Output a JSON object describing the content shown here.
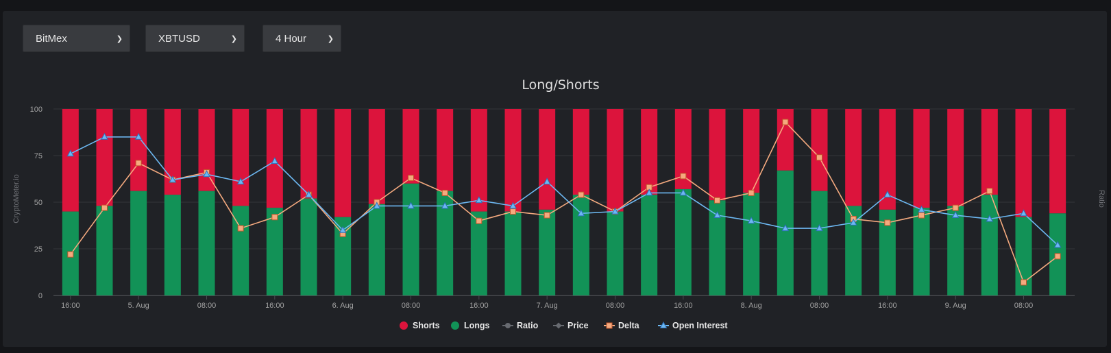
{
  "controls": {
    "exchange": {
      "value": "BitMex",
      "icon": "chevron-down-icon"
    },
    "symbol": {
      "value": "XBTUSD",
      "icon": "chevron-down-icon"
    },
    "interval": {
      "value": "4 Hour",
      "icon": "chevron-down-icon"
    }
  },
  "chart_data": {
    "type": "bar",
    "title": "Long/Shorts",
    "ylabel": "CryptoMeter.io",
    "y2label": "Ratio",
    "ylim": [
      0,
      100
    ],
    "yticks": [
      "0",
      "25",
      "50",
      "75",
      "100"
    ],
    "stacked": true,
    "grid": true,
    "legend_position": "bottom-center",
    "x_tick_labels": [
      {
        "index": 0,
        "label": "16:00"
      },
      {
        "index": 2,
        "label": "5. Aug"
      },
      {
        "index": 4,
        "label": "08:00"
      },
      {
        "index": 6,
        "label": "16:00"
      },
      {
        "index": 8,
        "label": "6. Aug"
      },
      {
        "index": 10,
        "label": "08:00"
      },
      {
        "index": 12,
        "label": "16:00"
      },
      {
        "index": 14,
        "label": "7. Aug"
      },
      {
        "index": 16,
        "label": "08:00"
      },
      {
        "index": 18,
        "label": "16:00"
      },
      {
        "index": 20,
        "label": "8. Aug"
      },
      {
        "index": 22,
        "label": "08:00"
      },
      {
        "index": 24,
        "label": "16:00"
      },
      {
        "index": 26,
        "label": "9. Aug"
      },
      {
        "index": 28,
        "label": "08:00"
      }
    ],
    "series": [
      {
        "name": "Longs",
        "kind": "bar",
        "color": "#129257",
        "values": [
          45,
          48,
          56,
          54,
          56,
          48,
          47,
          52,
          42,
          49,
          60,
          56,
          45,
          45,
          46,
          54,
          45,
          54,
          57,
          51,
          55,
          67,
          56,
          48,
          46,
          47,
          48,
          54,
          42,
          44
        ]
      },
      {
        "name": "Shorts",
        "kind": "bar",
        "color": "#dc143c",
        "values": [
          55,
          52,
          44,
          46,
          44,
          52,
          53,
          48,
          58,
          51,
          40,
          44,
          55,
          55,
          54,
          46,
          55,
          46,
          43,
          49,
          45,
          33,
          44,
          52,
          54,
          53,
          52,
          46,
          58,
          56
        ]
      },
      {
        "name": "Ratio",
        "kind": "line",
        "color": "#676a70",
        "marker": "circle",
        "values": []
      },
      {
        "name": "Price",
        "kind": "line",
        "color": "#676a70",
        "marker": "diamond",
        "values": []
      },
      {
        "name": "Delta",
        "kind": "line",
        "color": "#f5aa7f",
        "marker": "square",
        "values": [
          22,
          47,
          71,
          62,
          66,
          36,
          42,
          54,
          33,
          50,
          63,
          55,
          40,
          45,
          43,
          54,
          45,
          58,
          64,
          51,
          55,
          93,
          74,
          41,
          39,
          43,
          47,
          56,
          7,
          21
        ]
      },
      {
        "name": "Open Interest",
        "kind": "line",
        "color": "#6db8f2",
        "marker": "triangle",
        "values": [
          76,
          85,
          85,
          62,
          65,
          61,
          72,
          54,
          35,
          48,
          48,
          48,
          51,
          48,
          61,
          44,
          45,
          55,
          55,
          43,
          40,
          36,
          36,
          39,
          54,
          46,
          43,
          41,
          44,
          27
        ]
      }
    ]
  }
}
